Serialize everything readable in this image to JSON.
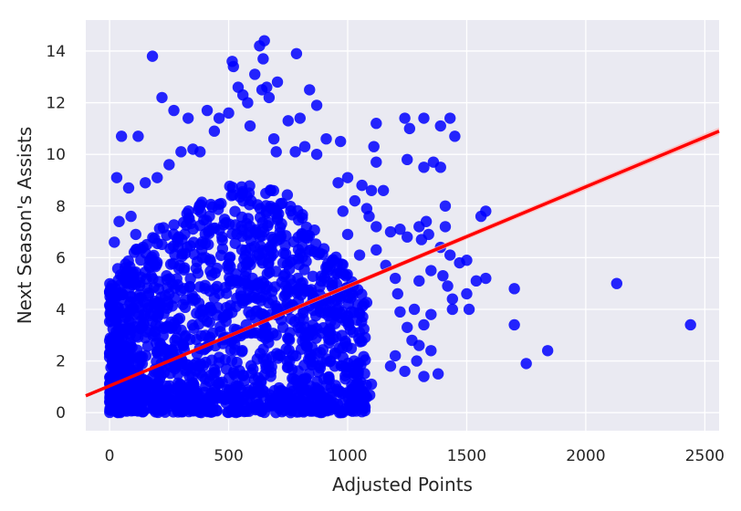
{
  "chart_data": {
    "type": "scatter",
    "title": "",
    "xlabel": "Adjusted Points",
    "ylabel": "Next Season's Assists",
    "xlim": [
      -100,
      2560
    ],
    "ylim": [
      -0.7,
      15.2
    ],
    "xticks": [
      0,
      500,
      1000,
      1500,
      2000,
      2500
    ],
    "yticks": [
      0,
      2,
      4,
      6,
      8,
      10,
      12,
      14
    ],
    "grid": true,
    "legend": "none",
    "colors": {
      "background": "#eaeaf2",
      "grid": "#ffffff",
      "points": "#0000ff",
      "regression_line": "#ff0000",
      "confidence_band": "#ffb3b3"
    },
    "regression": {
      "x": [
        -100,
        2560
      ],
      "y": [
        0.65,
        10.9
      ]
    },
    "series": [
      {
        "points": [
          [
            180,
            13.8
          ],
          [
            515,
            13.6
          ],
          [
            520,
            13.4
          ],
          [
            630,
            14.2
          ],
          [
            650,
            14.4
          ],
          [
            645,
            13.7
          ],
          [
            785,
            13.9
          ],
          [
            610,
            13.1
          ],
          [
            220,
            12.2
          ],
          [
            540,
            12.6
          ],
          [
            560,
            12.3
          ],
          [
            580,
            12.0
          ],
          [
            640,
            12.5
          ],
          [
            660,
            12.6
          ],
          [
            705,
            12.8
          ],
          [
            670,
            12.2
          ],
          [
            840,
            12.5
          ],
          [
            870,
            11.9
          ],
          [
            270,
            11.7
          ],
          [
            330,
            11.4
          ],
          [
            410,
            11.7
          ],
          [
            460,
            11.4
          ],
          [
            500,
            11.6
          ],
          [
            750,
            11.3
          ],
          [
            800,
            11.4
          ],
          [
            1120,
            11.2
          ],
          [
            1240,
            11.4
          ],
          [
            1320,
            11.4
          ],
          [
            1260,
            11.0
          ],
          [
            1390,
            11.1
          ],
          [
            1430,
            11.4
          ],
          [
            1450,
            10.7
          ],
          [
            50,
            10.7
          ],
          [
            120,
            10.7
          ],
          [
            440,
            10.9
          ],
          [
            690,
            10.6
          ],
          [
            910,
            10.6
          ],
          [
            970,
            10.5
          ],
          [
            1110,
            10.3
          ],
          [
            1120,
            9.7
          ],
          [
            1250,
            9.8
          ],
          [
            1320,
            9.5
          ],
          [
            1360,
            9.7
          ],
          [
            1390,
            9.5
          ],
          [
            1000,
            9.1
          ],
          [
            1060,
            8.8
          ],
          [
            1100,
            8.6
          ],
          [
            1150,
            8.6
          ],
          [
            1030,
            8.2
          ],
          [
            1080,
            7.9
          ],
          [
            1090,
            7.6
          ],
          [
            1120,
            7.2
          ],
          [
            1180,
            7.0
          ],
          [
            1220,
            7.1
          ],
          [
            1250,
            6.8
          ],
          [
            1310,
            6.7
          ],
          [
            1330,
            7.4
          ],
          [
            1340,
            6.9
          ],
          [
            1300,
            7.2
          ],
          [
            1410,
            8.0
          ],
          [
            1410,
            7.2
          ],
          [
            1560,
            7.6
          ],
          [
            1580,
            7.8
          ],
          [
            1390,
            6.4
          ],
          [
            1430,
            6.1
          ],
          [
            1470,
            5.8
          ],
          [
            1500,
            5.9
          ],
          [
            1400,
            5.3
          ],
          [
            1540,
            5.1
          ],
          [
            1580,
            5.2
          ],
          [
            1350,
            5.5
          ],
          [
            1300,
            5.1
          ],
          [
            1420,
            4.9
          ],
          [
            1440,
            4.4
          ],
          [
            1500,
            4.6
          ],
          [
            1440,
            4.0
          ],
          [
            1510,
            4.0
          ],
          [
            1700,
            4.8
          ],
          [
            1700,
            3.4
          ],
          [
            1750,
            1.9
          ],
          [
            1840,
            2.4
          ],
          [
            2130,
            5.0
          ],
          [
            2440,
            3.4
          ],
          [
            1320,
            1.4
          ],
          [
            1380,
            1.5
          ],
          [
            1290,
            2.0
          ],
          [
            1300,
            2.6
          ],
          [
            1350,
            2.4
          ],
          [
            1350,
            3.8
          ],
          [
            1320,
            3.4
          ],
          [
            1280,
            4.0
          ],
          [
            1200,
            2.2
          ],
          [
            1240,
            1.6
          ],
          [
            1180,
            1.8
          ],
          [
            1100,
            1.1
          ],
          [
            1080,
            0.6
          ],
          [
            1020,
            0.9
          ],
          [
            760,
            0.0
          ],
          [
            30,
            9.1
          ],
          [
            80,
            8.7
          ],
          [
            90,
            7.6
          ],
          [
            40,
            7.4
          ],
          [
            20,
            6.6
          ],
          [
            110,
            6.9
          ],
          [
            150,
            8.9
          ],
          [
            200,
            9.1
          ],
          [
            250,
            9.6
          ],
          [
            300,
            10.1
          ],
          [
            350,
            10.2
          ],
          [
            380,
            10.1
          ],
          [
            590,
            11.1
          ],
          [
            700,
            10.1
          ],
          [
            780,
            10.1
          ],
          [
            820,
            10.3
          ],
          [
            870,
            10.0
          ],
          [
            960,
            8.9
          ],
          [
            980,
            7.8
          ],
          [
            1000,
            6.9
          ],
          [
            1050,
            6.1
          ],
          [
            1120,
            6.3
          ],
          [
            1160,
            5.7
          ],
          [
            1200,
            5.2
          ],
          [
            1210,
            4.6
          ],
          [
            1220,
            3.9
          ],
          [
            1250,
            3.3
          ],
          [
            1270,
            2.8
          ]
        ]
      }
    ]
  }
}
